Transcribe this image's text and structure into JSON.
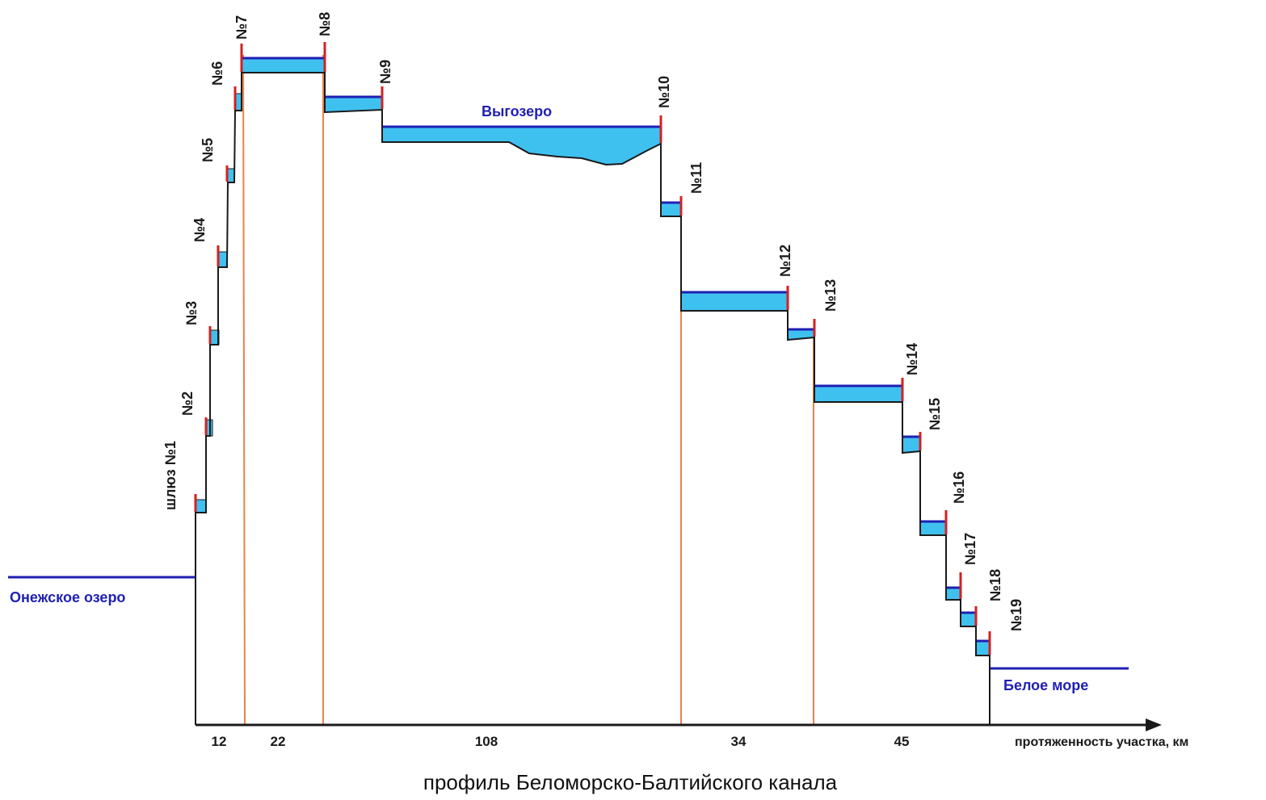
{
  "title": "профиль Беломорско-Балтийского канала",
  "x_axis_label": "протяженность участка, км",
  "water_bodies": {
    "onega": "Онежское озеро",
    "vygozero": "Выгозеро",
    "white_sea": "Белое море"
  },
  "locks": [
    "шлюз №1",
    "№2",
    "№3",
    "№4",
    "№5",
    "№6",
    "№7",
    "№8",
    "№9",
    "№10",
    "№11",
    "№12",
    "№13",
    "№14",
    "№15",
    "№16",
    "№17",
    "№18",
    "№19"
  ],
  "section_lengths_km": [
    "12",
    "22",
    "108",
    "34",
    "45"
  ],
  "colors": {
    "water_fill": "#3fc1f0",
    "water_line": "#1f1fb4",
    "lock_mark": "#d42020",
    "divider": "#e8824a",
    "profile_line": "#1a1a1a"
  }
}
